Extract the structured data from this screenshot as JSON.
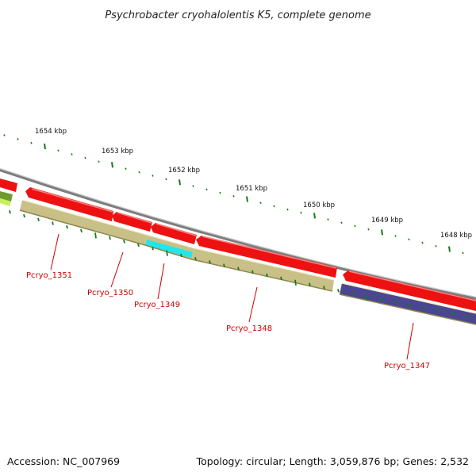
{
  "title": "Psychrobacter cryohalolentis K5, complete genome",
  "footer": {
    "accession": "Accession: NC_007969",
    "summary": "Topology: circular; Length: 3,059,876 bp; Genes: 2,532"
  },
  "scale_labels": [
    "1654 kbp",
    "1653 kbp",
    "1652 kbp",
    "1651 kbp",
    "1650 kbp",
    "1649 kbp",
    "1648 kbp"
  ],
  "gene_labels": [
    "Pcryo_1351",
    "Pcryo_1350",
    "Pcryo_1349",
    "Pcryo_1348",
    "Pcryo_1347"
  ],
  "colors": {
    "forward_cds": "#ee1111",
    "reverse_gene_olive": "#c8c087",
    "reverse_gene_cyan": "#22e6ea",
    "reverse_gene_purple": "#4a4690",
    "green_partial": "#7fb23a",
    "backbone": "#888888",
    "tick": "#1a7a1a",
    "label": "#cc0000"
  }
}
